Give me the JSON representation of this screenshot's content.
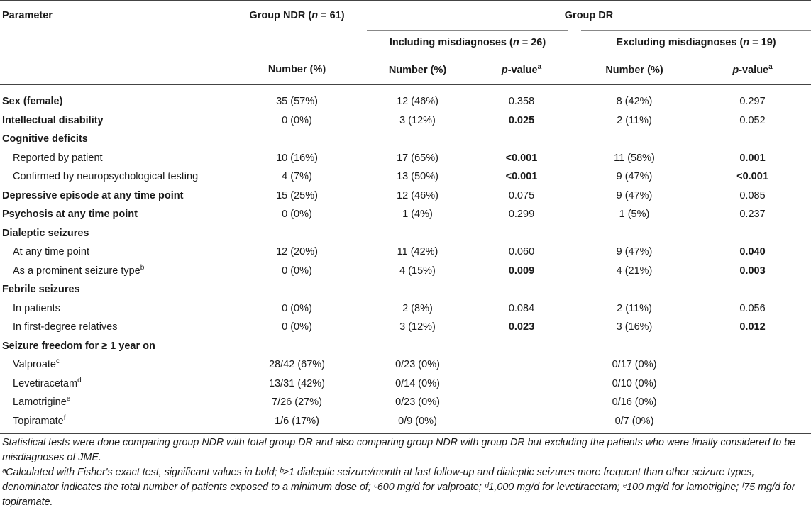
{
  "header": {
    "parameter": "Parameter",
    "group_ndr": "Group NDR (",
    "group_ndr_n": "n",
    "group_ndr_tail": " = 61)",
    "group_dr": "Group DR",
    "incl": "Including misdiagnoses (",
    "incl_n": "n",
    "incl_tail": " = 26)",
    "excl": "Excluding misdiagnoses (",
    "excl_n": "n",
    "excl_tail": " = 19)",
    "number_pct": "Number (%)",
    "p_value_p": "p",
    "p_value_tail": "-value",
    "p_value_sup": "a"
  },
  "rows": [
    {
      "label": "Sex (female)",
      "bold_label": true,
      "indent": false,
      "ndr": "35 (57%)",
      "incl_n": "12 (46%)",
      "incl_p": "0.358",
      "incl_p_bold": false,
      "excl_n": "8 (42%)",
      "excl_p": "0.297",
      "excl_p_bold": false
    },
    {
      "label": "Intellectual disability",
      "bold_label": true,
      "indent": false,
      "ndr": "0 (0%)",
      "incl_n": "3 (12%)",
      "incl_p": "0.025",
      "incl_p_bold": true,
      "excl_n": "2 (11%)",
      "excl_p": "0.052",
      "excl_p_bold": false
    },
    {
      "label": "Cognitive deficits",
      "bold_label": true,
      "indent": false,
      "ndr": "",
      "incl_n": "",
      "incl_p": "",
      "incl_p_bold": false,
      "excl_n": "",
      "excl_p": "",
      "excl_p_bold": false
    },
    {
      "label": "Reported by patient",
      "bold_label": false,
      "indent": true,
      "ndr": "10 (16%)",
      "incl_n": "17 (65%)",
      "incl_p": "<0.001",
      "incl_p_bold": true,
      "excl_n": "11 (58%)",
      "excl_p": "0.001",
      "excl_p_bold": true
    },
    {
      "label": "Confirmed by neuropsychological testing",
      "bold_label": false,
      "indent": true,
      "ndr": "4 (7%)",
      "incl_n": "13 (50%)",
      "incl_p": "<0.001",
      "incl_p_bold": true,
      "excl_n": "9 (47%)",
      "excl_p": "<0.001",
      "excl_p_bold": true
    },
    {
      "label": "Depressive episode at any time point",
      "bold_label": true,
      "indent": false,
      "ndr": "15 (25%)",
      "incl_n": "12 (46%)",
      "incl_p": "0.075",
      "incl_p_bold": false,
      "excl_n": "9 (47%)",
      "excl_p": "0.085",
      "excl_p_bold": false
    },
    {
      "label": "Psychosis at any time point",
      "bold_label": true,
      "indent": false,
      "ndr": "0 (0%)",
      "incl_n": "1 (4%)",
      "incl_p": "0.299",
      "incl_p_bold": false,
      "excl_n": "1 (5%)",
      "excl_p": "0.237",
      "excl_p_bold": false
    },
    {
      "label": "Dialeptic seizures",
      "bold_label": true,
      "indent": false,
      "ndr": "",
      "incl_n": "",
      "incl_p": "",
      "incl_p_bold": false,
      "excl_n": "",
      "excl_p": "",
      "excl_p_bold": false
    },
    {
      "label": "At any time point",
      "bold_label": false,
      "indent": true,
      "ndr": "12 (20%)",
      "incl_n": "11 (42%)",
      "incl_p": "0.060",
      "incl_p_bold": false,
      "excl_n": "9 (47%)",
      "excl_p": "0.040",
      "excl_p_bold": true
    },
    {
      "label": "As a prominent seizure type",
      "sup": "b",
      "bold_label": false,
      "indent": true,
      "ndr": "0 (0%)",
      "incl_n": "4 (15%)",
      "incl_p": "0.009",
      "incl_p_bold": true,
      "excl_n": "4 (21%)",
      "excl_p": "0.003",
      "excl_p_bold": true
    },
    {
      "label": "Febrile seizures",
      "bold_label": true,
      "indent": false,
      "ndr": "",
      "incl_n": "",
      "incl_p": "",
      "incl_p_bold": false,
      "excl_n": "",
      "excl_p": "",
      "excl_p_bold": false
    },
    {
      "label": "In patients",
      "bold_label": false,
      "indent": true,
      "ndr": "0 (0%)",
      "incl_n": "2 (8%)",
      "incl_p": "0.084",
      "incl_p_bold": false,
      "excl_n": "2 (11%)",
      "excl_p": "0.056",
      "excl_p_bold": false
    },
    {
      "label": "In first-degree relatives",
      "bold_label": false,
      "indent": true,
      "ndr": "0 (0%)",
      "incl_n": "3 (12%)",
      "incl_p": "0.023",
      "incl_p_bold": true,
      "excl_n": "3 (16%)",
      "excl_p": "0.012",
      "excl_p_bold": true
    },
    {
      "label": "Seizure freedom for ≥ 1 year on",
      "bold_label": true,
      "indent": false,
      "ndr": "",
      "incl_n": "",
      "incl_p": "",
      "incl_p_bold": false,
      "excl_n": "",
      "excl_p": "",
      "excl_p_bold": false
    },
    {
      "label": "Valproate",
      "sup": "c",
      "bold_label": false,
      "indent": true,
      "ndr": "28/42 (67%)",
      "incl_n": "0/23 (0%)",
      "incl_p": "",
      "incl_p_bold": false,
      "excl_n": "0/17 (0%)",
      "excl_p": "",
      "excl_p_bold": false
    },
    {
      "label": "Levetiracetam",
      "sup": "d",
      "bold_label": false,
      "indent": true,
      "ndr": "13/31 (42%)",
      "incl_n": "0/14 (0%)",
      "incl_p": "",
      "incl_p_bold": false,
      "excl_n": "0/10 (0%)",
      "excl_p": "",
      "excl_p_bold": false
    },
    {
      "label": "Lamotrigine",
      "sup": "e",
      "bold_label": false,
      "indent": true,
      "ndr": "7/26 (27%)",
      "incl_n": "0/23 (0%)",
      "incl_p": "",
      "incl_p_bold": false,
      "excl_n": "0/16 (0%)",
      "excl_p": "",
      "excl_p_bold": false
    },
    {
      "label": "Topiramate",
      "sup": "f",
      "bold_label": false,
      "indent": true,
      "ndr": "1/6 (17%)",
      "incl_n": "0/9 (0%)",
      "incl_p": "",
      "incl_p_bold": false,
      "excl_n": "0/7 (0%)",
      "excl_p": "",
      "excl_p_bold": false
    }
  ],
  "notes": {
    "line1": "Statistical tests were done comparing group NDR with total group DR and also comparing group NDR with group DR but excluding the patients who were finally considered to be misdiagnoses of JME.",
    "line2": "ᵃCalculated with Fisher's exact test, significant values in bold; ᵇ≥1 dialeptic seizure/month at last follow-up and dialeptic seizures more frequent than other seizure types, denominator indicates the total number of patients exposed to a minimum dose of; ᶜ600 mg/d for valproate; ᵈ1,000 mg/d for levetiracetam; ᵉ100 mg/d for lamotrigine; ᶠ75 mg/d for topiramate."
  }
}
